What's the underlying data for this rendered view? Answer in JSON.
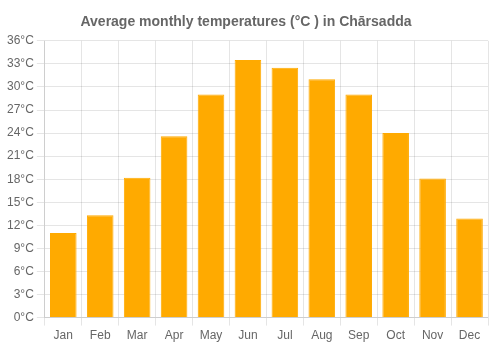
{
  "chart_data": {
    "type": "bar",
    "title": "Average monthly temperatures (°C ) in Chārsadda",
    "categories": [
      "Jan",
      "Feb",
      "Mar",
      "Apr",
      "May",
      "Jun",
      "Jul",
      "Aug",
      "Sep",
      "Oct",
      "Nov",
      "Dec"
    ],
    "values": [
      11.0,
      13.3,
      18.2,
      23.6,
      29.0,
      33.5,
      32.5,
      31.0,
      29.0,
      24.0,
      18.1,
      12.9
    ],
    "color": "#FFAA00",
    "ylim": [
      0,
      36
    ],
    "yticks": [
      {
        "value": 0,
        "label": "0°C"
      },
      {
        "value": 3,
        "label": "3°C"
      },
      {
        "value": 6,
        "label": "6°C"
      },
      {
        "value": 9,
        "label": "9°C"
      },
      {
        "value": 12,
        "label": "12°C"
      },
      {
        "value": 15,
        "label": "15°C"
      },
      {
        "value": 18,
        "label": "18°C"
      },
      {
        "value": 21,
        "label": "21°C"
      },
      {
        "value": 24,
        "label": "24°C"
      },
      {
        "value": 27,
        "label": "27°C"
      },
      {
        "value": 30,
        "label": "30°C"
      },
      {
        "value": 33,
        "label": "33°C"
      },
      {
        "value": 36,
        "label": "36°C"
      }
    ],
    "grid": true
  }
}
